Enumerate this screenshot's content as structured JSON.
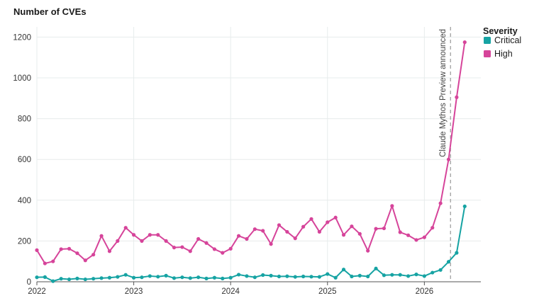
{
  "chart_data": {
    "type": "line",
    "title": "Number of CVEs",
    "xlabel": "",
    "ylabel": "",
    "xlim": [
      2022.0,
      2026.583
    ],
    "ylim": [
      0,
      1250
    ],
    "x_ticks": [
      2022,
      2023,
      2024,
      2025,
      2026
    ],
    "x_tick_labels": [
      "2022",
      "2023",
      "2024",
      "2025",
      "2026"
    ],
    "y_ticks": [
      0,
      200,
      400,
      600,
      800,
      1000,
      1200
    ],
    "y_tick_labels": [
      "0",
      "200",
      "400",
      "600",
      "800",
      "1000",
      "1200"
    ],
    "grid": "vertical and horizontal gridlines",
    "legend": {
      "title": "Severity",
      "placement": "right",
      "entries": [
        "Critical",
        "High"
      ]
    },
    "annotation": {
      "text": "Claude Mythos Preview announced",
      "x": 2026.27,
      "style": "dashed vertical line"
    },
    "x_start": 2022.0,
    "x_step_months": 1,
    "series": [
      {
        "name": "High",
        "color": "#d6449a",
        "values": [
          155,
          90,
          100,
          160,
          162,
          140,
          105,
          133,
          225,
          150,
          200,
          265,
          230,
          200,
          230,
          230,
          200,
          168,
          170,
          150,
          210,
          190,
          160,
          142,
          162,
          225,
          210,
          258,
          250,
          185,
          278,
          245,
          213,
          270,
          308,
          245,
          292,
          315,
          230,
          272,
          235,
          152,
          260,
          262,
          372,
          243,
          228,
          205,
          218,
          265,
          385,
          600,
          905,
          1175
        ]
      },
      {
        "name": "Critical",
        "color": "#16a3a3",
        "values": [
          22,
          23,
          3,
          15,
          12,
          16,
          12,
          15,
          18,
          20,
          24,
          34,
          20,
          22,
          28,
          25,
          30,
          18,
          22,
          18,
          22,
          16,
          20,
          16,
          20,
          35,
          28,
          22,
          33,
          30,
          26,
          27,
          24,
          26,
          25,
          24,
          38,
          20,
          60,
          26,
          30,
          26,
          65,
          32,
          34,
          34,
          28,
          36,
          28,
          45,
          58,
          98,
          142,
          370
        ]
      }
    ]
  }
}
